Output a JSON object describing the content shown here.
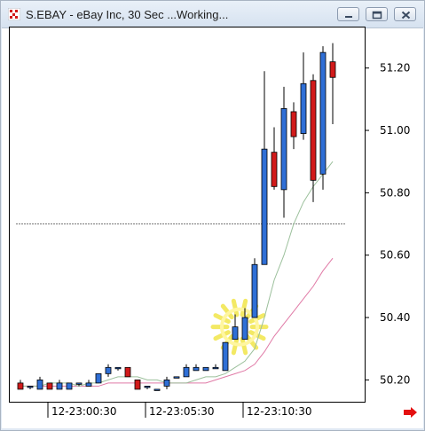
{
  "window": {
    "title": "S.EBAY - eBay Inc, 30 Sec ...Working...",
    "icons": {
      "app": "chart-app-icon",
      "minimize": "minimize-icon",
      "restore": "restore-icon",
      "close": "close-icon",
      "scroll": "scroll-right-arrow-icon"
    },
    "colors": {
      "up": "#2f6fd6",
      "down": "#d11a1a",
      "fast_ma": "#9cc09c",
      "slow_ma": "#e07aa6",
      "highlight": "#f2e64a"
    }
  },
  "chart_data": {
    "type": "candlestick",
    "ylim": [
      50.13,
      51.33
    ],
    "y_ticks": [
      "51.20",
      "51.00",
      "50.80",
      "50.60",
      "50.40",
      "50.20"
    ],
    "y_tick_values": [
      51.2,
      51.0,
      50.8,
      50.6,
      50.4,
      50.2
    ],
    "x_ticks": [
      "12-23:00:30",
      "12-23:05:30",
      "12-23:10:30"
    ],
    "x_tick_index": [
      3,
      13,
      23
    ],
    "reference_line": 50.7,
    "candles": [
      {
        "o": 50.19,
        "h": 50.2,
        "l": 50.17,
        "c": 50.17
      },
      {
        "o": 50.18,
        "h": 50.18,
        "l": 50.17,
        "c": 50.18
      },
      {
        "o": 50.17,
        "h": 50.21,
        "l": 50.17,
        "c": 50.2
      },
      {
        "o": 50.19,
        "h": 50.19,
        "l": 50.17,
        "c": 50.17
      },
      {
        "o": 50.17,
        "h": 50.2,
        "l": 50.17,
        "c": 50.19
      },
      {
        "o": 50.17,
        "h": 50.19,
        "l": 50.17,
        "c": 50.19
      },
      {
        "o": 50.19,
        "h": 50.19,
        "l": 50.18,
        "c": 50.19
      },
      {
        "o": 50.18,
        "h": 50.2,
        "l": 50.18,
        "c": 50.19
      },
      {
        "o": 50.19,
        "h": 50.22,
        "l": 50.19,
        "c": 50.22
      },
      {
        "o": 50.22,
        "h": 50.25,
        "l": 50.21,
        "c": 50.24
      },
      {
        "o": 50.24,
        "h": 50.24,
        "l": 50.23,
        "c": 50.24
      },
      {
        "o": 50.24,
        "h": 50.24,
        "l": 50.21,
        "c": 50.21
      },
      {
        "o": 50.2,
        "h": 50.2,
        "l": 50.17,
        "c": 50.17
      },
      {
        "o": 50.18,
        "h": 50.18,
        "l": 50.17,
        "c": 50.18
      },
      {
        "o": 50.17,
        "h": 50.17,
        "l": 50.17,
        "c": 50.17
      },
      {
        "o": 50.18,
        "h": 50.21,
        "l": 50.17,
        "c": 50.2
      },
      {
        "o": 50.21,
        "h": 50.21,
        "l": 50.21,
        "c": 50.21
      },
      {
        "o": 50.21,
        "h": 50.25,
        "l": 50.21,
        "c": 50.24
      },
      {
        "o": 50.23,
        "h": 50.25,
        "l": 50.23,
        "c": 50.24
      },
      {
        "o": 50.23,
        "h": 50.24,
        "l": 50.23,
        "c": 50.24
      },
      {
        "o": 50.24,
        "h": 50.25,
        "l": 50.24,
        "c": 50.24
      },
      {
        "o": 50.23,
        "h": 50.32,
        "l": 50.23,
        "c": 50.32
      },
      {
        "o": 50.33,
        "h": 50.41,
        "l": 50.33,
        "c": 50.37
      },
      {
        "o": 50.33,
        "h": 50.43,
        "l": 50.33,
        "c": 50.4
      },
      {
        "o": 50.4,
        "h": 50.59,
        "l": 50.4,
        "c": 50.57
      },
      {
        "o": 50.57,
        "h": 51.19,
        "l": 50.57,
        "c": 50.94
      },
      {
        "o": 50.93,
        "h": 51.01,
        "l": 50.81,
        "c": 50.82
      },
      {
        "o": 50.81,
        "h": 51.14,
        "l": 50.72,
        "c": 51.07
      },
      {
        "o": 51.06,
        "h": 51.09,
        "l": 50.94,
        "c": 50.98
      },
      {
        "o": 50.99,
        "h": 51.25,
        "l": 50.97,
        "c": 51.15
      },
      {
        "o": 51.16,
        "h": 51.18,
        "l": 50.77,
        "c": 50.84
      },
      {
        "o": 50.86,
        "h": 51.27,
        "l": 50.81,
        "c": 51.25
      },
      {
        "o": 51.22,
        "h": 51.28,
        "l": 51.02,
        "c": 51.17
      }
    ],
    "fast_ma": [
      50.18,
      50.18,
      50.18,
      50.19,
      50.19,
      50.19,
      50.18,
      50.19,
      50.19,
      50.2,
      50.21,
      50.21,
      50.21,
      50.2,
      50.2,
      50.19,
      50.19,
      50.19,
      50.2,
      50.21,
      50.21,
      50.22,
      50.24,
      50.26,
      50.3,
      50.4,
      50.52,
      50.6,
      50.7,
      50.77,
      50.82,
      50.86,
      50.9
    ],
    "slow_ma": [
      50.18,
      50.18,
      50.18,
      50.18,
      50.18,
      50.18,
      50.18,
      50.18,
      50.18,
      50.19,
      50.19,
      50.19,
      50.19,
      50.19,
      50.19,
      50.19,
      50.19,
      50.19,
      50.19,
      50.19,
      50.2,
      50.21,
      50.22,
      50.23,
      50.25,
      50.29,
      50.34,
      50.38,
      50.42,
      50.46,
      50.5,
      50.55,
      50.59
    ]
  }
}
